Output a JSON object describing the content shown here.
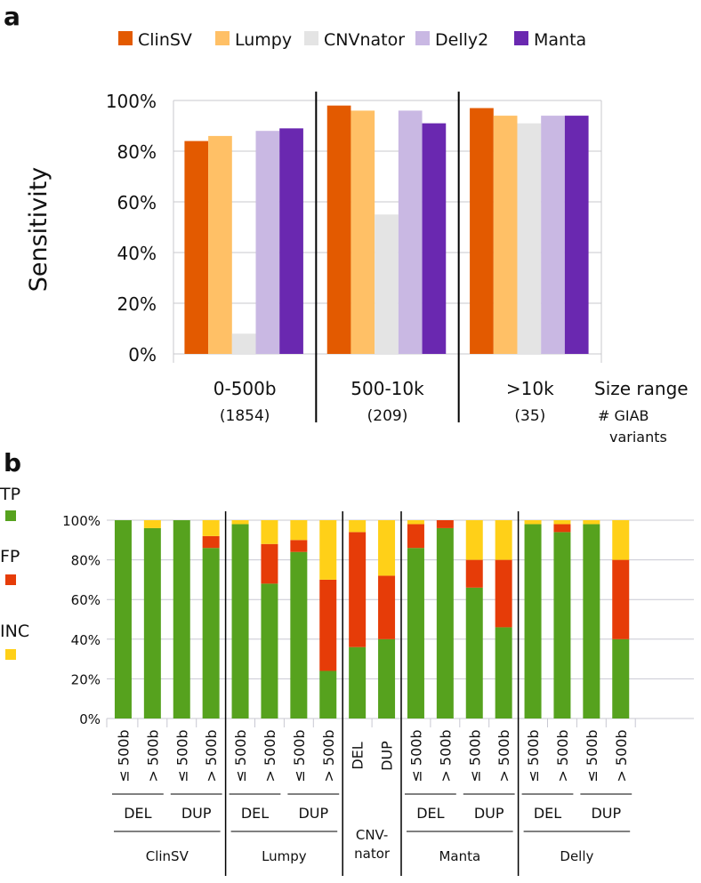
{
  "chart_data": [
    {
      "panel_label": "a",
      "type": "bar",
      "ylabel": "Sensitivity",
      "xlabel": "Size range",
      "xlabel2": "# GIAB variants",
      "ylim": [
        0,
        100
      ],
      "yticks": [
        "0%",
        "20%",
        "40%",
        "60%",
        "80%",
        "100%"
      ],
      "categories": [
        "0-500b",
        "500-10k",
        ">10k"
      ],
      "category_counts": [
        "(1854)",
        "(209)",
        "(35)"
      ],
      "legend_position": "top",
      "series": [
        {
          "name": "ClinSV",
          "color": "#E35A00",
          "values": [
            84,
            98,
            97
          ]
        },
        {
          "name": "Lumpy",
          "color": "#FFC066",
          "values": [
            86,
            96,
            94
          ]
        },
        {
          "name": "CNVnator",
          "color": "#E4E4E4",
          "values": [
            8,
            55,
            91
          ]
        },
        {
          "name": "Delly2",
          "color": "#C9B8E3",
          "values": [
            88,
            96,
            94
          ]
        },
        {
          "name": "Manta",
          "color": "#6A28B0",
          "values": [
            89,
            91,
            94
          ]
        }
      ]
    },
    {
      "panel_label": "b",
      "type": "bar",
      "stacked": true,
      "ylim": [
        0,
        100
      ],
      "yticks": [
        "0%",
        "20%",
        "40%",
        "60%",
        "80%",
        "100%"
      ],
      "legend_position": "left",
      "legend": [
        {
          "name": "TP",
          "color": "#56A21E"
        },
        {
          "name": "FP",
          "color": "#E63C08"
        },
        {
          "name": "INC",
          "color": "#FFD018"
        }
      ],
      "groups": [
        {
          "name": "ClinSV",
          "subgroups": [
            {
              "name": "DEL",
              "bars": [
                {
                  "label": "≤ 500b",
                  "TP": 100,
                  "FP": 0,
                  "INC": 0
                },
                {
                  "label": "> 500b",
                  "TP": 96,
                  "FP": 0,
                  "INC": 4
                }
              ]
            },
            {
              "name": "DUP",
              "bars": [
                {
                  "label": "≤ 500b",
                  "TP": 100,
                  "FP": 0,
                  "INC": 0
                },
                {
                  "label": "> 500b",
                  "TP": 86,
                  "FP": 6,
                  "INC": 8
                }
              ]
            }
          ]
        },
        {
          "name": "Lumpy",
          "subgroups": [
            {
              "name": "DEL",
              "bars": [
                {
                  "label": "≤ 500b",
                  "TP": 98,
                  "FP": 0,
                  "INC": 2
                },
                {
                  "label": "> 500b",
                  "TP": 68,
                  "FP": 20,
                  "INC": 12
                }
              ]
            },
            {
              "name": "DUP",
              "bars": [
                {
                  "label": "≤ 500b",
                  "TP": 84,
                  "FP": 6,
                  "INC": 10
                },
                {
                  "label": "> 500b",
                  "TP": 24,
                  "FP": 46,
                  "INC": 30
                }
              ]
            }
          ]
        },
        {
          "name": "CNV-nator",
          "name_lines": [
            "CNV-",
            "nator"
          ],
          "subgroups": [
            {
              "name": "",
              "bars": [
                {
                  "label": "DEL",
                  "TP": 36,
                  "FP": 58,
                  "INC": 6
                },
                {
                  "label": "DUP",
                  "TP": 40,
                  "FP": 32,
                  "INC": 28
                }
              ]
            }
          ]
        },
        {
          "name": "Manta",
          "subgroups": [
            {
              "name": "DEL",
              "bars": [
                {
                  "label": "≤ 500b",
                  "TP": 86,
                  "FP": 12,
                  "INC": 2
                },
                {
                  "label": "> 500b",
                  "TP": 96,
                  "FP": 4,
                  "INC": 0
                }
              ]
            },
            {
              "name": "DUP",
              "bars": [
                {
                  "label": "≤ 500b",
                  "TP": 66,
                  "FP": 14,
                  "INC": 20
                },
                {
                  "label": "> 500b",
                  "TP": 46,
                  "FP": 34,
                  "INC": 20
                }
              ]
            }
          ]
        },
        {
          "name": "Delly",
          "subgroups": [
            {
              "name": "DEL",
              "bars": [
                {
                  "label": "≤ 500b",
                  "TP": 98,
                  "FP": 0,
                  "INC": 2
                },
                {
                  "label": "> 500b",
                  "TP": 94,
                  "FP": 4,
                  "INC": 2
                }
              ]
            },
            {
              "name": "DUP",
              "bars": [
                {
                  "label": "≤ 500b",
                  "TP": 98,
                  "FP": 0,
                  "INC": 2
                },
                {
                  "label": "> 500b",
                  "TP": 40,
                  "FP": 40,
                  "INC": 20
                }
              ]
            }
          ]
        }
      ]
    }
  ]
}
